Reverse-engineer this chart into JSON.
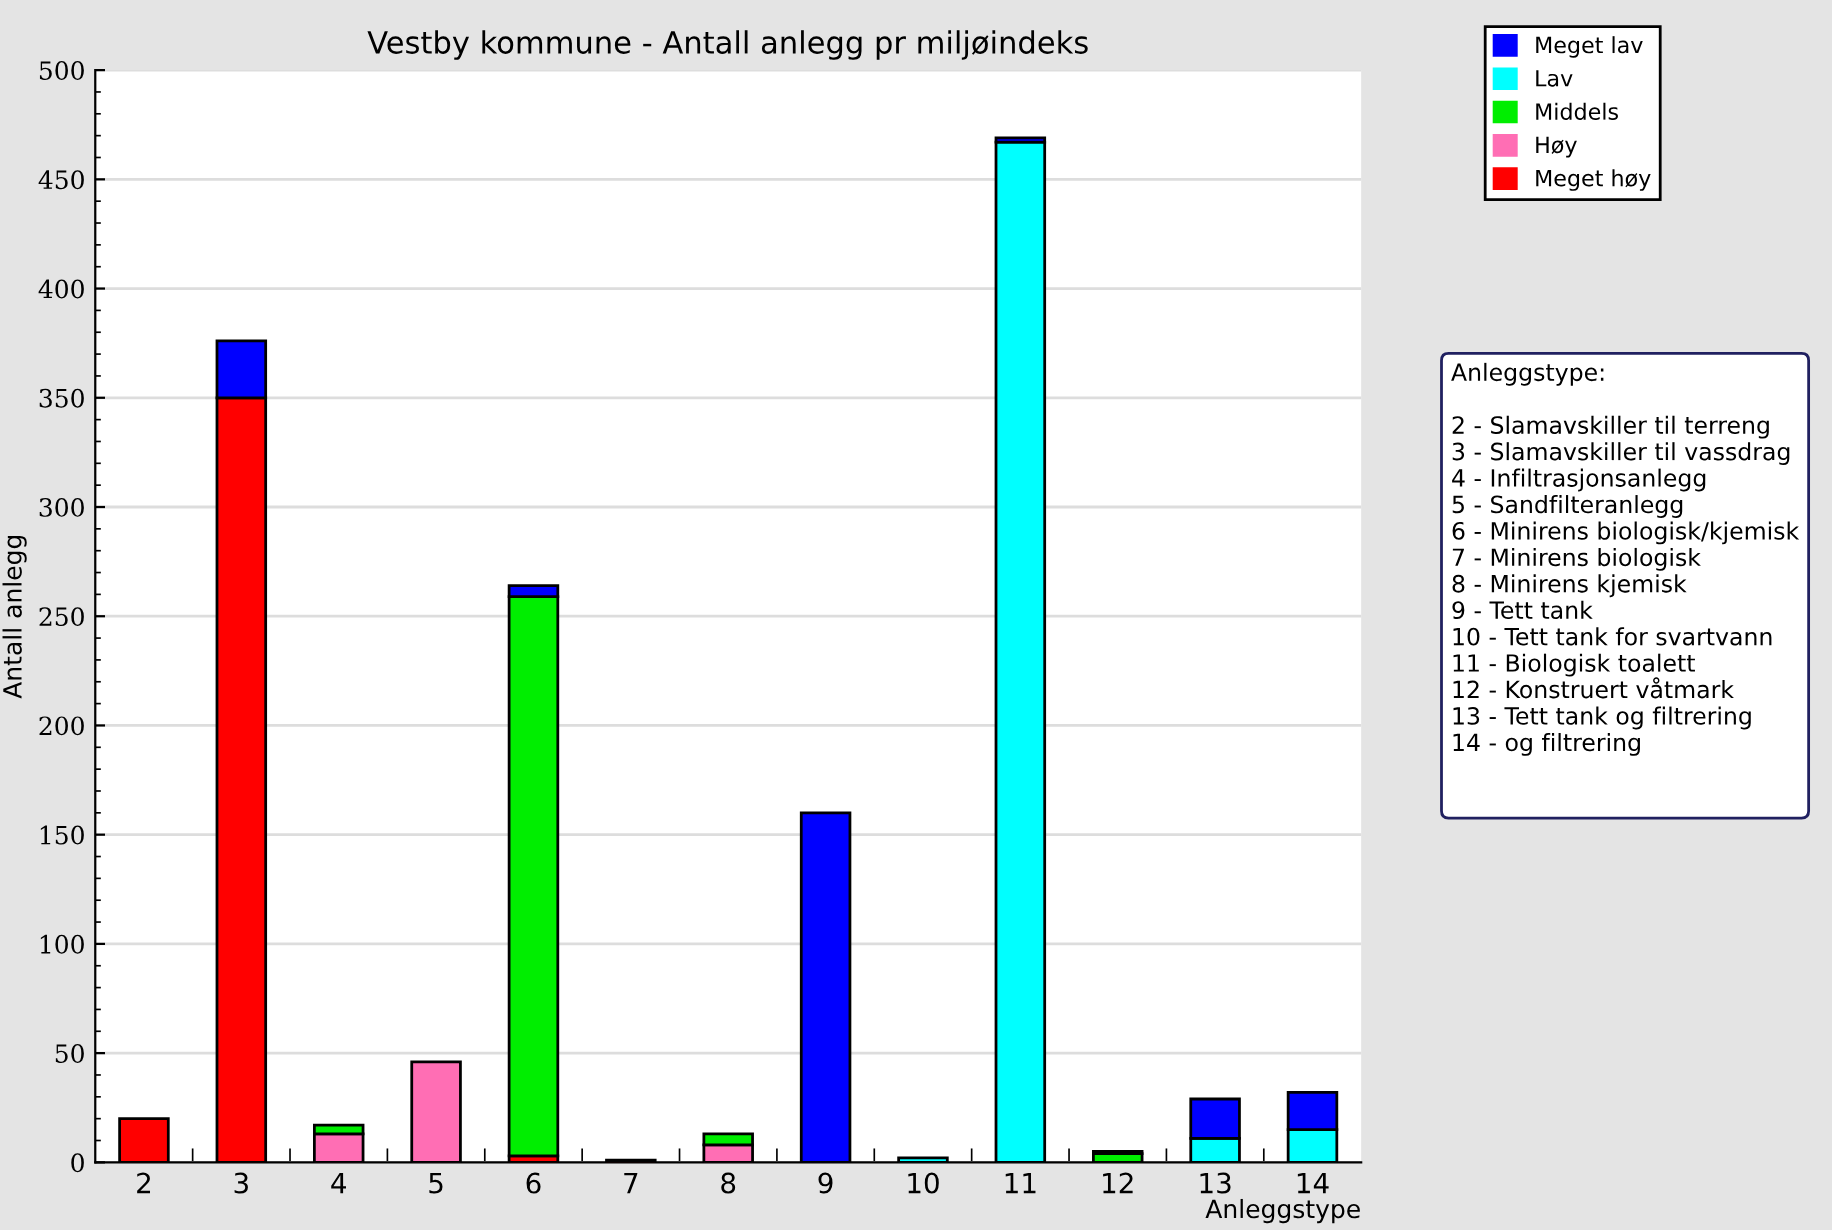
{
  "chart_data": {
    "type": "bar",
    "title": "Vestby kommune - Antall anlegg pr miljøindeks",
    "xlabel": "Anleggstype",
    "ylabel": "Antall anlegg",
    "categories": [
      "2",
      "3",
      "4",
      "5",
      "6",
      "7",
      "8",
      "9",
      "10",
      "11",
      "12",
      "13",
      "14"
    ],
    "stacked": true,
    "series": [
      {
        "name": "Meget høy",
        "color": "#ff0000",
        "values": [
          20,
          350,
          null,
          null,
          3,
          1,
          null,
          null,
          null,
          null,
          null,
          null,
          null
        ]
      },
      {
        "name": "Høy",
        "color": "#ff6eb4",
        "values": [
          null,
          null,
          13,
          46,
          null,
          null,
          8,
          null,
          null,
          null,
          null,
          null,
          null
        ]
      },
      {
        "name": "Middels",
        "color": "#00ee00",
        "values": [
          null,
          null,
          4,
          null,
          256,
          null,
          5,
          null,
          null,
          null,
          4,
          null,
          null
        ]
      },
      {
        "name": "Lav",
        "color": "#00ffff",
        "values": [
          null,
          null,
          null,
          null,
          null,
          null,
          null,
          null,
          2,
          467,
          1,
          11,
          15
        ]
      },
      {
        "name": "Meget lav",
        "color": "#0000ff",
        "values": [
          null,
          26,
          null,
          null,
          5,
          null,
          null,
          160,
          null,
          2,
          null,
          18,
          17
        ]
      }
    ],
    "ylim": [
      0,
      500
    ],
    "yticks": [
      0,
      50,
      100,
      150,
      200,
      250,
      300,
      350,
      400,
      450,
      500
    ],
    "grid": "y",
    "legend": "top right",
    "annotations": [
      "Anleggstype:\n\n2 - Slamavskiller til terreng\n3 - Slamavskiller til vassdrag\n4 - Infiltrasjonsanlegg\n5 - Sandfilteranlegg\n6 - Minirens biologisk/kjemisk\n7 - Minirens biologisk\n8 - Minirens kjemisk\n9 - Tett tank\n10 - Tett tank for svartvann\n11 - Biologisk toalett\n12 - Konstruert våtmark\n13 - Tett tank og filtrering\n14 - og filtrering\n\n"
    ]
  }
}
